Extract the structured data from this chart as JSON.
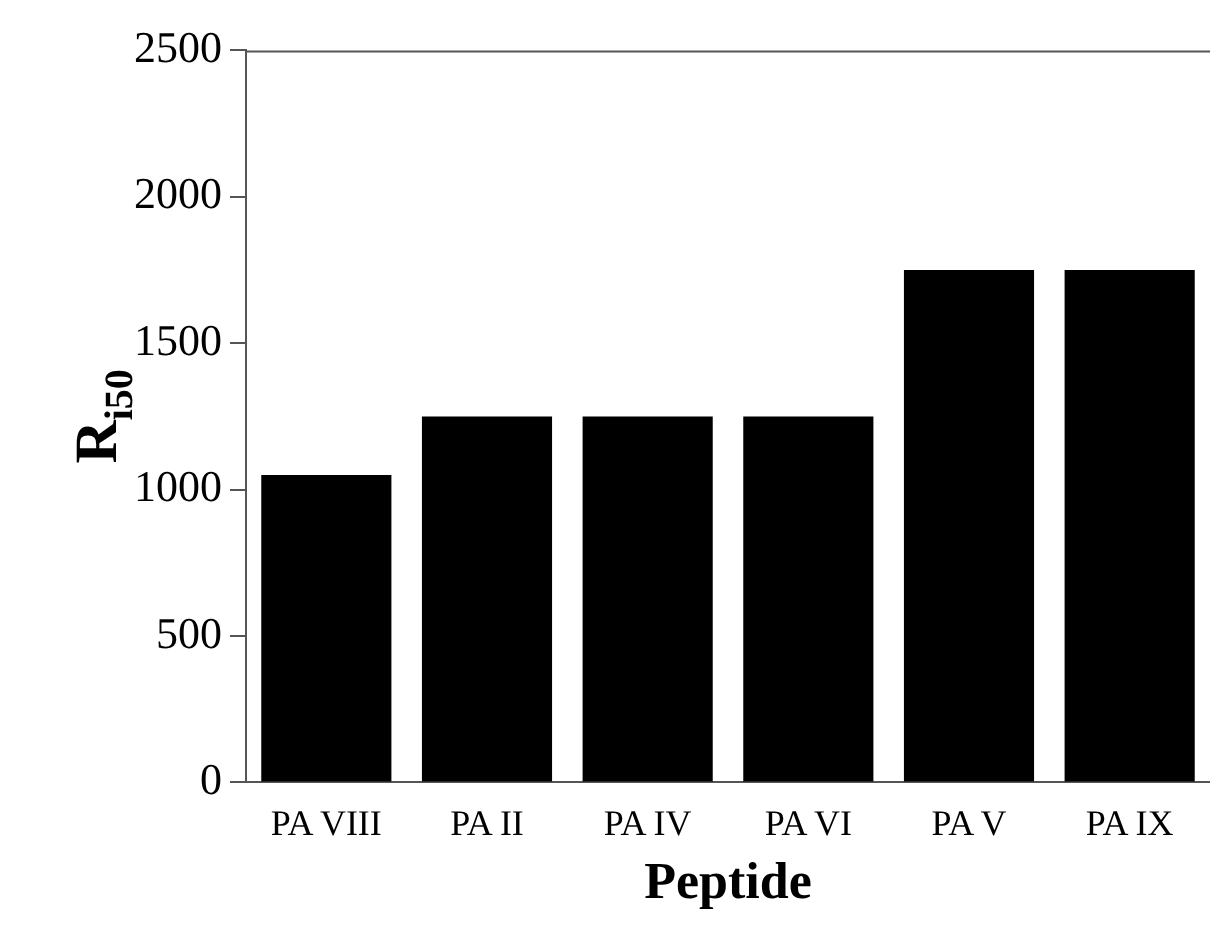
{
  "chart_data": {
    "type": "bar",
    "xlabel": "Peptide",
    "ylabel": "R$_{i50}$",
    "categories": [
      "PA VIII",
      "PA II",
      "PA IV",
      "PA VI",
      "PA V",
      "PA IX"
    ],
    "values": [
      1050,
      1250,
      1250,
      1250,
      1750,
      1750
    ],
    "color": "#000000",
    "ylim": [
      0,
      2500
    ],
    "yticks": [
      0,
      500,
      1000,
      1500,
      2000,
      2500
    ],
    "grid": false,
    "legend": false
  }
}
